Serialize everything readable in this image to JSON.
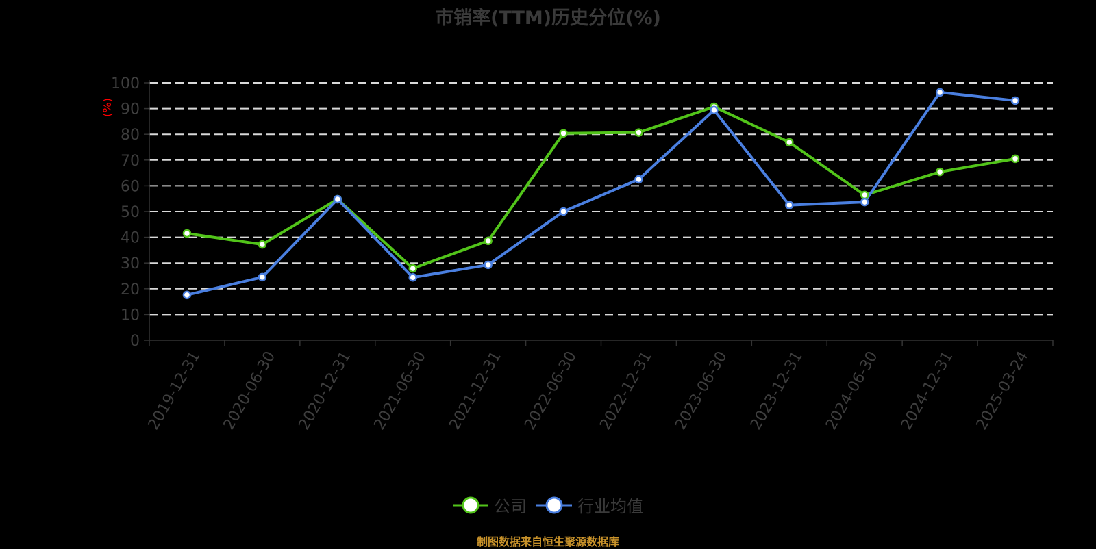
{
  "title": "市销率(TTM)历史分位(%)",
  "y_axis_name": "(%)",
  "footer": "制图数据来自恒生聚源数据库",
  "colors": {
    "company": "#52c41a",
    "industry": "#4a7fe0",
    "grid": "#d9d9d9",
    "axis": "#333333",
    "y_axis_name": "#ff0000",
    "footer": "#c8922a"
  },
  "legend": [
    {
      "name": "公司",
      "color": "#52c41a"
    },
    {
      "name": "行业均值",
      "color": "#4a7fe0"
    }
  ],
  "chart_data": {
    "type": "line",
    "title": "市销率(TTM)历史分位(%)",
    "xlabel": "",
    "ylabel": "(%)",
    "ylim": [
      0,
      100
    ],
    "yticks": [
      0,
      10,
      20,
      30,
      40,
      50,
      60,
      70,
      80,
      90,
      100
    ],
    "grid": true,
    "legend_position": "bottom",
    "categories": [
      "2019-12-31",
      "2020-06-30",
      "2020-12-31",
      "2021-06-30",
      "2021-12-31",
      "2022-06-30",
      "2022-12-31",
      "2023-06-30",
      "2023-12-31",
      "2024-06-30",
      "2024-12-31",
      "2025-03-24"
    ],
    "series": [
      {
        "name": "公司",
        "values": [
          41.5,
          37.2,
          54.8,
          27.9,
          38.6,
          80.4,
          80.7,
          90.7,
          76.9,
          56.4,
          65.4,
          70.5
        ]
      },
      {
        "name": "行业均值",
        "values": [
          17.6,
          24.5,
          54.8,
          24.4,
          29.3,
          50.0,
          62.5,
          89.4,
          52.5,
          53.7,
          96.3,
          93.1
        ]
      }
    ]
  }
}
